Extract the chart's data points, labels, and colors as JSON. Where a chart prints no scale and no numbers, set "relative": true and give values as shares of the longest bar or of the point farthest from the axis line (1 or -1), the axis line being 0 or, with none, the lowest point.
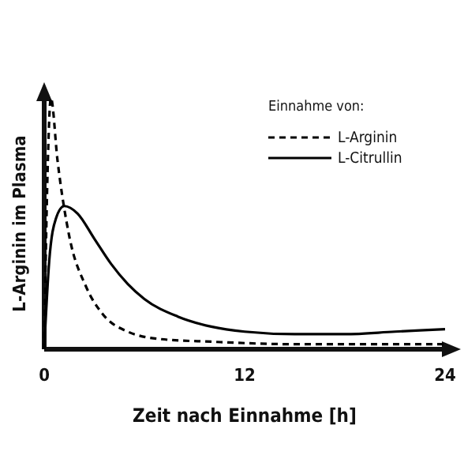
{
  "chart_data": {
    "type": "line",
    "relative": true,
    "xlabel": "Zeit nach Einnahme [h]",
    "ylabel": "L-Arginin im Plasma",
    "legend_title": "Einnahme von:",
    "legend": "top right",
    "xlim": [
      0,
      24
    ],
    "xticks": [
      0,
      12,
      24
    ],
    "series": [
      {
        "name": "L-Arginin",
        "color": "#000000",
        "line_style": "dashed",
        "x": [
          0,
          0.2,
          0.4,
          0.8,
          1.5,
          2.5,
          3.5,
          5,
          7,
          10,
          15,
          20,
          24
        ],
        "values": [
          0,
          0.7,
          1,
          0.75,
          0.45,
          0.25,
          0.14,
          0.07,
          0.04,
          0.03,
          0.02,
          0.02,
          0.02
        ]
      },
      {
        "name": "L-Citrullin",
        "color": "#000000",
        "line_style": "solid",
        "x": [
          0,
          0.3,
          0.7,
          1.2,
          2,
          3,
          4,
          5,
          6,
          8,
          10,
          12,
          15,
          18,
          21,
          24
        ],
        "values": [
          0,
          0.35,
          0.52,
          0.57,
          0.54,
          0.44,
          0.34,
          0.26,
          0.2,
          0.13,
          0.09,
          0.07,
          0.06,
          0.06,
          0.07,
          0.08
        ]
      }
    ]
  }
}
